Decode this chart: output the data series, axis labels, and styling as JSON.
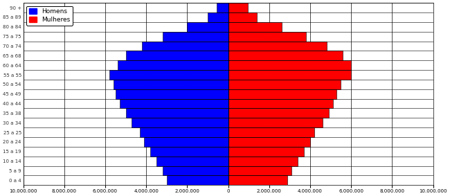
{
  "age_groups": [
    "0 a 4",
    "5 a 9",
    "10 a 14",
    "15 a 19",
    "20 a 24",
    "25 a 25",
    "30 a 34",
    "35 a 38",
    "40 a 44",
    "45 a 49",
    "50 a 54",
    "55 a 55",
    "60 a 64",
    "65 a 68",
    "70 a 74",
    "75 a 75",
    "80 a 84",
    "85 a 89",
    "90 +"
  ],
  "males": [
    3000000,
    3200000,
    3500000,
    3800000,
    4100000,
    4300000,
    4700000,
    5000000,
    5300000,
    5500000,
    5600000,
    5800000,
    5400000,
    5000000,
    4200000,
    3200000,
    2000000,
    1000000,
    550000
  ],
  "females": [
    2900000,
    3100000,
    3400000,
    3700000,
    4000000,
    4200000,
    4600000,
    4900000,
    5100000,
    5300000,
    5500000,
    6000000,
    6000000,
    5600000,
    4800000,
    3800000,
    2600000,
    1400000,
    950000
  ],
  "male_color": "#0000FF",
  "female_color": "#FF0000",
  "bar_edge_color": "#000000",
  "bar_linewidth": 0.4,
  "xlim": [
    -10000000,
    10000000
  ],
  "xticks": [
    -10000000,
    -8000000,
    -6000000,
    -4000000,
    -2000000,
    0,
    2000000,
    4000000,
    6000000,
    8000000,
    10000000
  ],
  "legend_labels": [
    "Homens",
    "Mulheres"
  ],
  "bg_color": "#FFFFFF",
  "grid_color": "#000000",
  "bar_height": 1.0
}
